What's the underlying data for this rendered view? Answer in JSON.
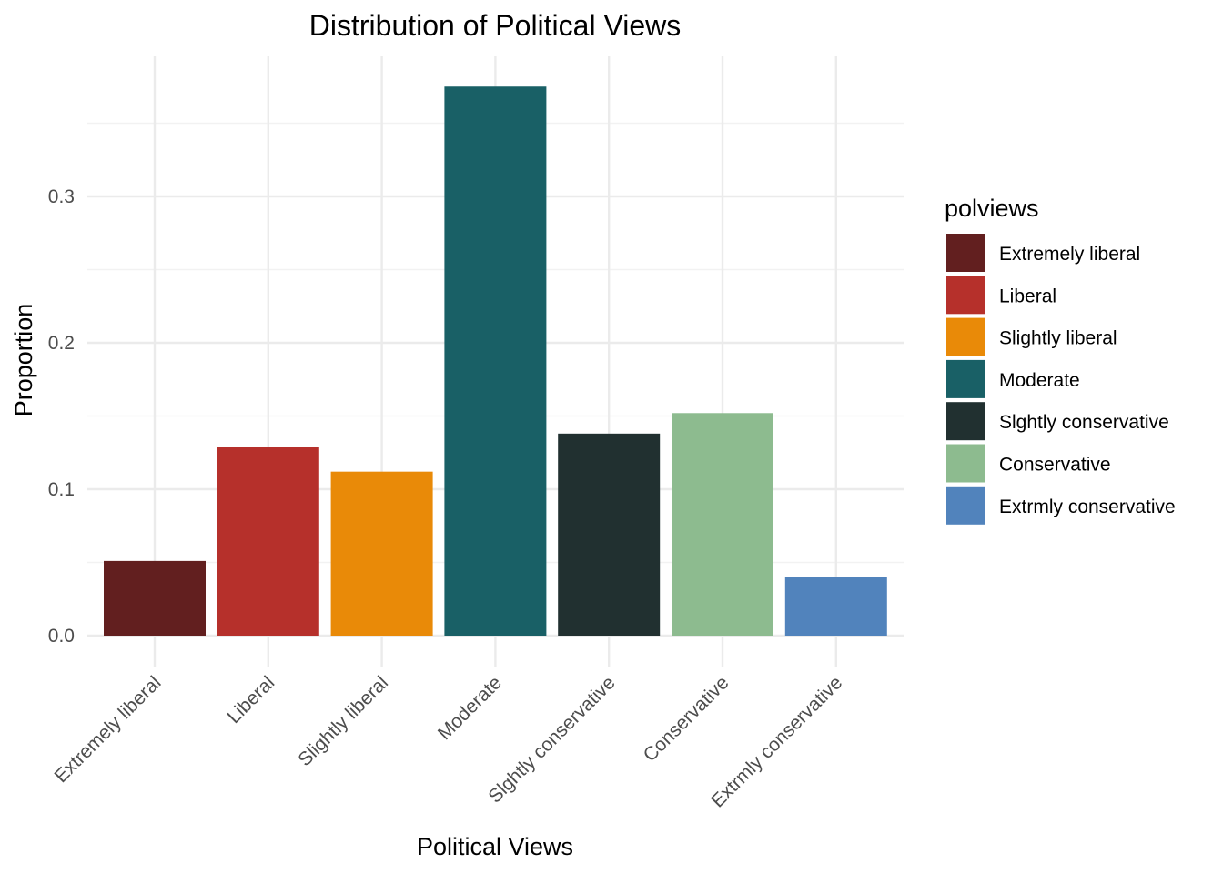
{
  "chart_data": {
    "type": "bar",
    "title": "Distribution of Political Views",
    "xlabel": "Political Views",
    "ylabel": "Proportion",
    "categories": [
      "Extremely liberal",
      "Liberal",
      "Slightly liberal",
      "Moderate",
      "Slghtly conservative",
      "Conservative",
      "Extrmly conservative"
    ],
    "values": [
      0.051,
      0.129,
      0.112,
      0.375,
      0.138,
      0.152,
      0.04
    ],
    "colors": [
      "#621F1F",
      "#B6302B",
      "#E98A08",
      "#196066",
      "#213030",
      "#8DBB8F",
      "#5183BC"
    ],
    "yticks": [
      0.0,
      0.1,
      0.2,
      0.3
    ],
    "ytick_labels": [
      "0.0",
      "0.1",
      "0.2",
      "0.3"
    ],
    "ylim": [
      0,
      0.395
    ],
    "grid": true,
    "legend": {
      "title": "polviews",
      "position": "right"
    }
  }
}
